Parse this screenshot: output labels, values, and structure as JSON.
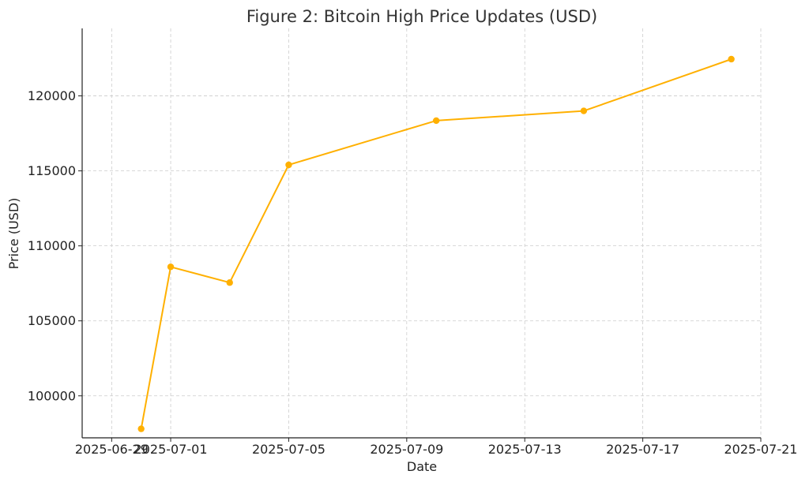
{
  "chart_data": {
    "type": "line",
    "title": "Figure 2: Bitcoin High Price Updates (USD)",
    "xlabel": "Date",
    "ylabel": "Price (USD)",
    "x_ticks": [
      "2025-06-29",
      "2025-07-01",
      "2025-07-05",
      "2025-07-09",
      "2025-07-13",
      "2025-07-17",
      "2025-07-21"
    ],
    "y_ticks": [
      100000,
      105000,
      110000,
      115000,
      120000
    ],
    "xlim": [
      "2025-06-28",
      "2025-07-21"
    ],
    "ylim": [
      97200,
      124500
    ],
    "grid": true,
    "series": [
      {
        "color": "#FFB000",
        "points": [
          {
            "x": "2025-06-30",
            "y": 97800
          },
          {
            "x": "2025-07-01",
            "y": 108600
          },
          {
            "x": "2025-07-03",
            "y": 107550
          },
          {
            "x": "2025-07-05",
            "y": 115400
          },
          {
            "x": "2025-07-10",
            "y": 118350
          },
          {
            "x": "2025-07-15",
            "y": 119000
          },
          {
            "x": "2025-07-20",
            "y": 122450
          }
        ]
      }
    ]
  }
}
